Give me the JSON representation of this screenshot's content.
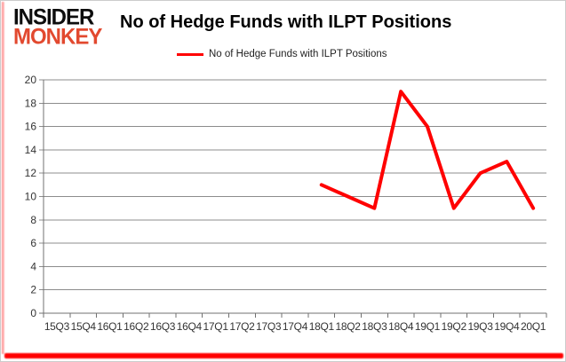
{
  "logo": {
    "line1": "INSIDER",
    "line2": "MONKEY"
  },
  "header": {
    "title": "No of Hedge Funds with ILPT Positions"
  },
  "legend": {
    "label": "No of Hedge Funds with ILPT Positions",
    "marker_color": "#ff0000"
  },
  "colors": {
    "series_red": "#ff0000",
    "gridline": "#8c8c8c",
    "axis": "#707070",
    "tick_label": "#333333",
    "logo_red": "#e2492f",
    "frame_accent_red": "#ff0000"
  },
  "chart_data": {
    "type": "line",
    "title": "No of Hedge Funds with ILPT Positions",
    "categories": [
      "15Q3",
      "15Q4",
      "16Q1",
      "16Q2",
      "16Q3",
      "16Q4",
      "17Q1",
      "17Q2",
      "17Q3",
      "17Q4",
      "18Q1",
      "18Q2",
      "18Q3",
      "18Q4",
      "19Q1",
      "19Q2",
      "19Q3",
      "19Q4",
      "20Q1"
    ],
    "series": [
      {
        "name": "No of Hedge Funds with ILPT Positions",
        "color": "#ff0000",
        "values": [
          null,
          null,
          null,
          null,
          null,
          null,
          null,
          null,
          null,
          null,
          11,
          10,
          9,
          19,
          16,
          9,
          12,
          13,
          9
        ]
      }
    ],
    "xlabel": "",
    "ylabel": "",
    "ylim": [
      0,
      20
    ],
    "ytick_step": 2,
    "grid": true,
    "legend_position": "top"
  }
}
